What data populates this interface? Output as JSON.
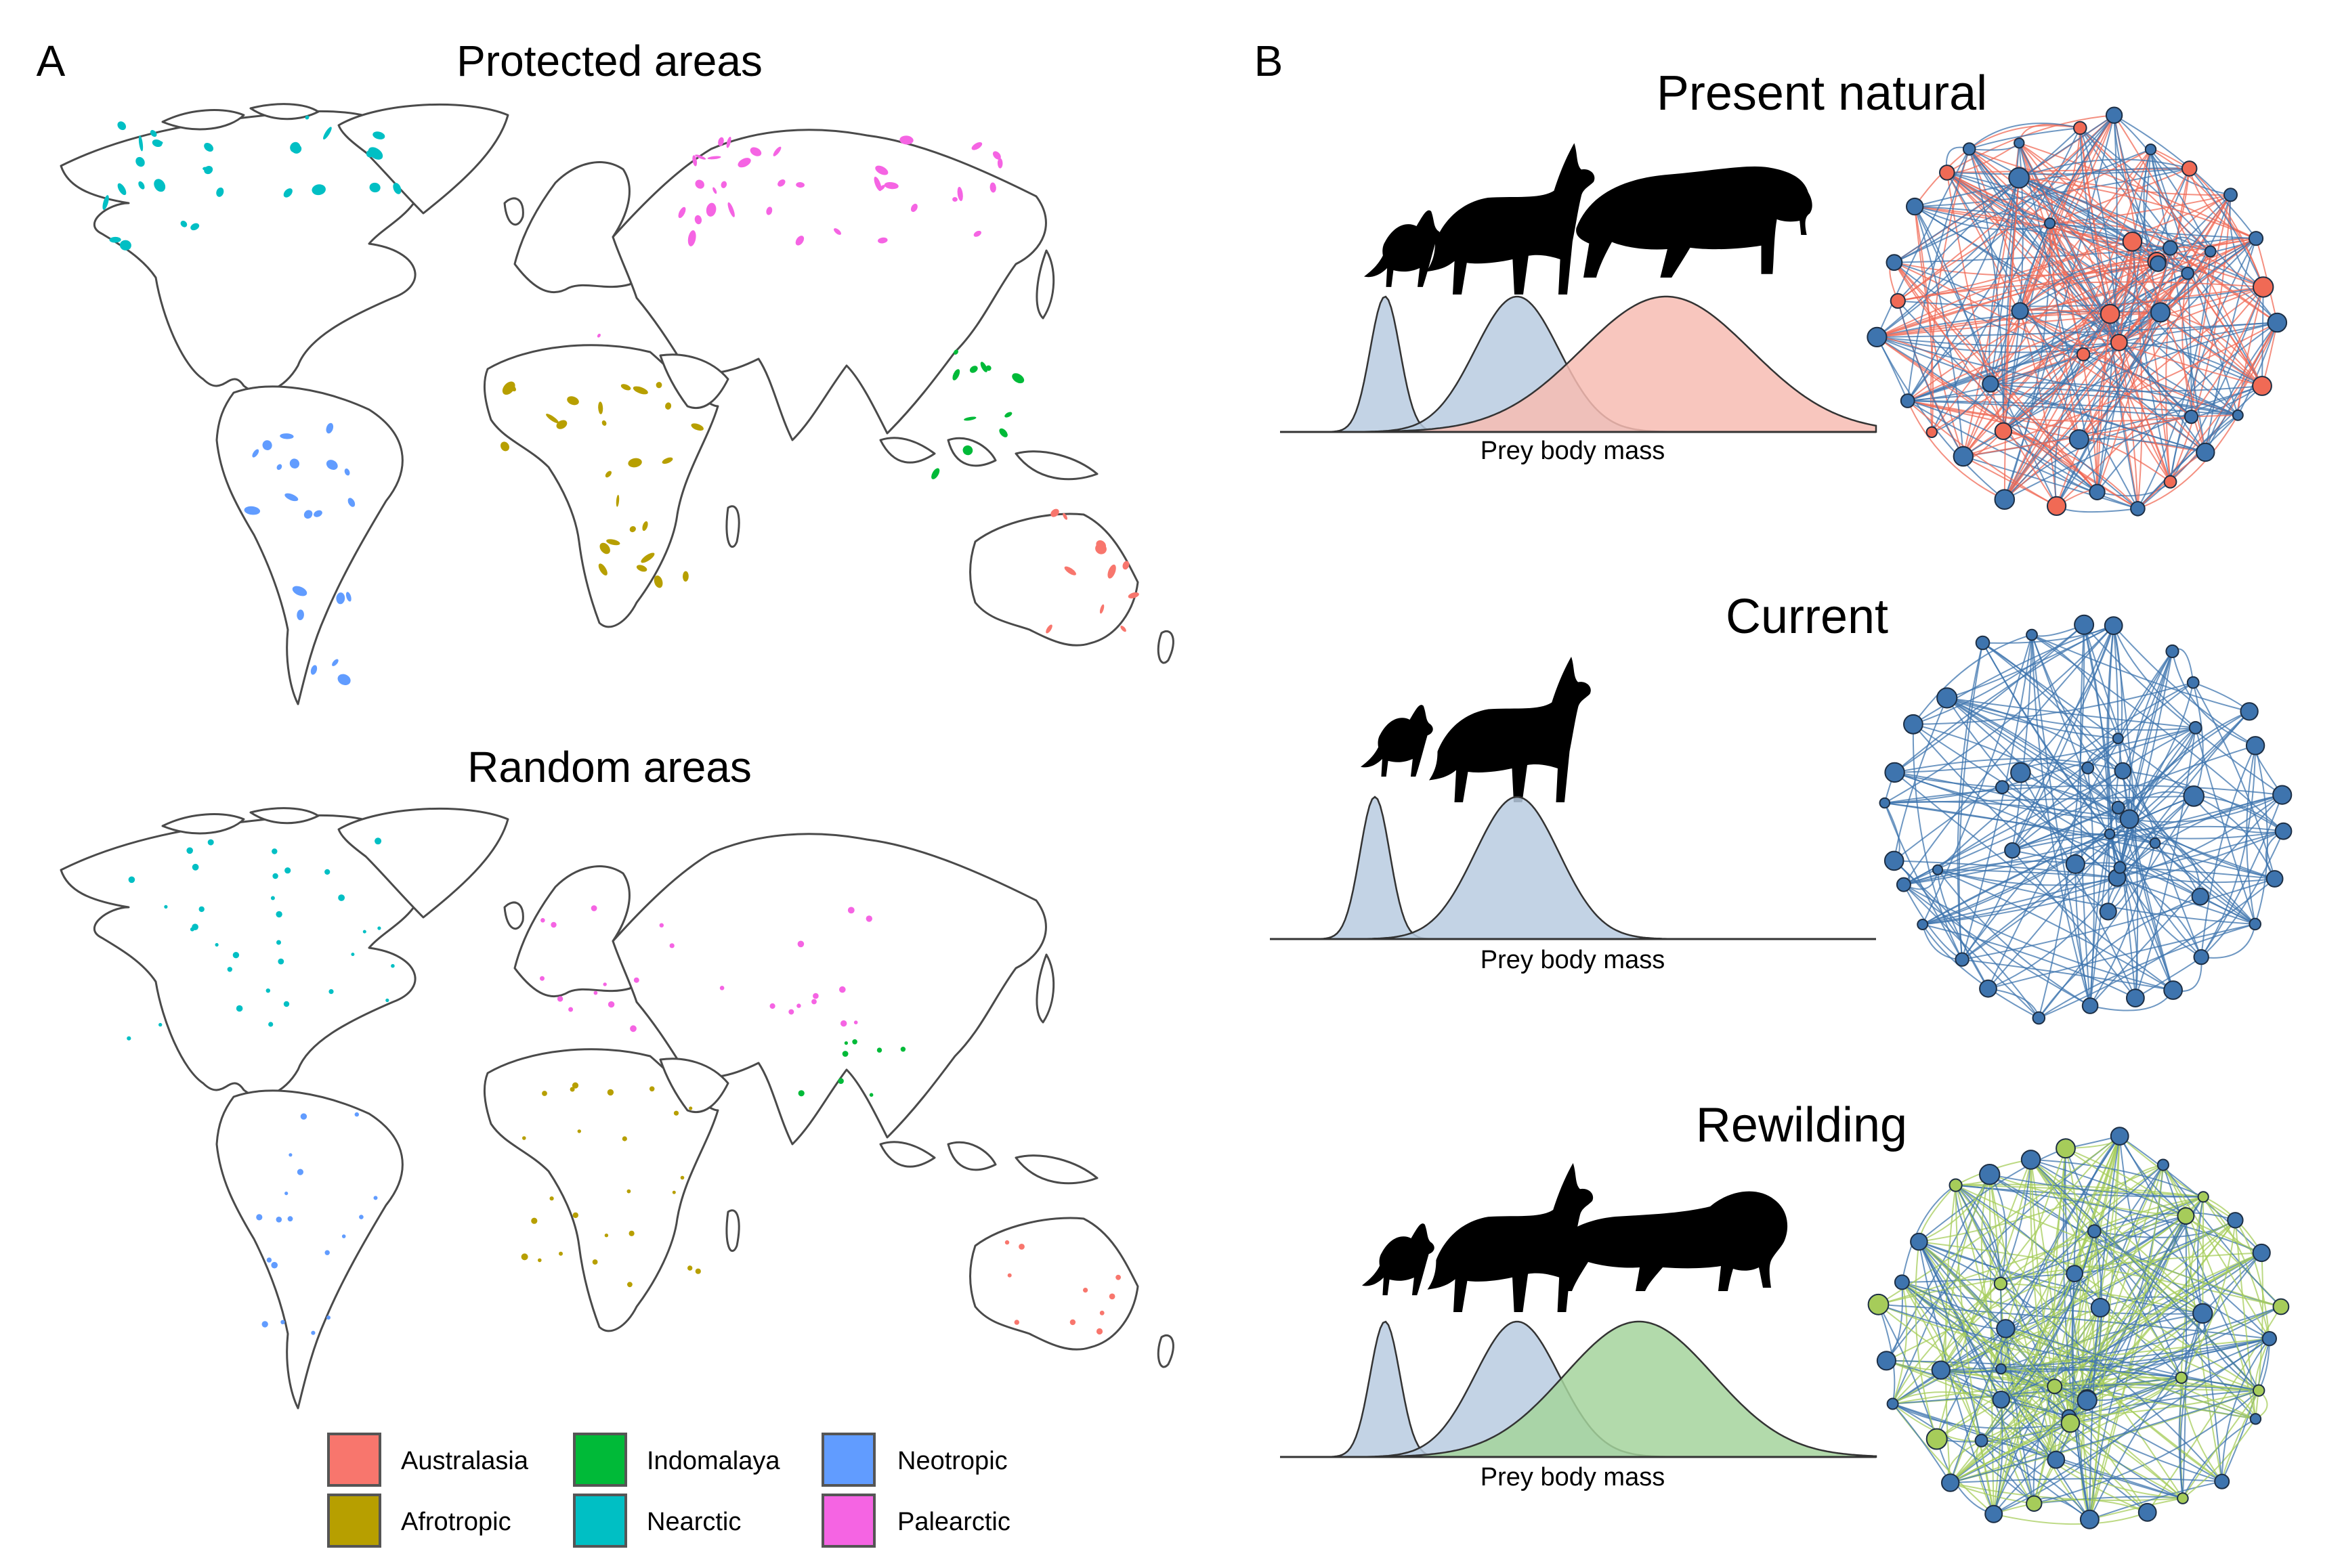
{
  "panel_a": {
    "letter": "A",
    "map_top": {
      "title": "Protected areas"
    },
    "map_bottom": {
      "title": "Random areas"
    },
    "legend": {
      "items": [
        {
          "label": "Australasia",
          "color": "#F8766D"
        },
        {
          "label": "Afrotropic",
          "color": "#B79F00"
        },
        {
          "label": "Indomalaya",
          "color": "#00BA38"
        },
        {
          "label": "Nearctic",
          "color": "#00BFC4"
        },
        {
          "label": "Neotropic",
          "color": "#619CFF"
        },
        {
          "label": "Palearctic",
          "color": "#F564E3"
        }
      ]
    }
  },
  "panel_b": {
    "letter": "B",
    "scenarios": [
      {
        "title": "Present natural",
        "xlabel": "Prey body mass",
        "predators": [
          "fox-silhouette",
          "wolf-silhouette",
          "sabertooth-silhouette"
        ],
        "curve_colors": [
          "#B9CBE0",
          "#B9CBE0",
          "#F7BCB3"
        ],
        "network_colors": [
          "#3E74AE",
          "#F06A55"
        ]
      },
      {
        "title": "Current",
        "xlabel": "Prey body mass",
        "predators": [
          "fox-silhouette",
          "wolf-silhouette"
        ],
        "curve_colors": [
          "#B9CBE0",
          "#B9CBE0"
        ],
        "network_colors": [
          "#3E74AE"
        ]
      },
      {
        "title": "Rewilding",
        "xlabel": "Prey body mass",
        "predators": [
          "fox-silhouette",
          "wolf-silhouette",
          "lion-silhouette"
        ],
        "curve_colors": [
          "#B9CBE0",
          "#B9CBE0",
          "#A4D49C"
        ],
        "network_colors": [
          "#3E74AE",
          "#A6CC5A"
        ]
      }
    ]
  }
}
